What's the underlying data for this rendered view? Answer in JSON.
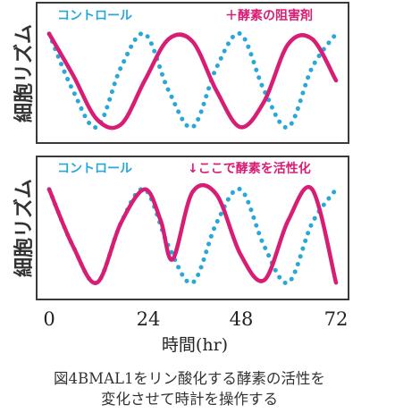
{
  "chart_data": [
    {
      "type": "line",
      "ylabel": "細胞リズム",
      "x_ticks": [
        "0",
        "24",
        "48",
        "72"
      ],
      "xlim": [
        0,
        72
      ],
      "ylim": [
        -1,
        1
      ],
      "series": [
        {
          "name": "コントロール",
          "color": "#29a8d8",
          "style": "dotted",
          "x": [
            0,
            6,
            12,
            18,
            24,
            30,
            36,
            42,
            48,
            54,
            60,
            66,
            72
          ],
          "y": [
            0.9,
            -0.2,
            -0.9,
            0.25,
            0.9,
            -0.2,
            -0.9,
            0.25,
            0.9,
            -0.2,
            -0.9,
            0.25,
            0.9
          ]
        },
        {
          "name": "＋酵素の阻害剤",
          "color": "#d81e74",
          "style": "solid",
          "x": [
            0,
            6,
            12,
            18,
            24,
            30,
            36,
            42,
            48,
            54,
            60,
            66,
            72
          ],
          "y": [
            0.9,
            0.1,
            -0.75,
            -0.85,
            0.0,
            0.8,
            0.75,
            -0.2,
            -0.9,
            -0.4,
            0.7,
            0.8,
            0.0
          ]
        }
      ]
    },
    {
      "type": "line",
      "ylabel": "細胞リズム",
      "x_ticks": [
        "0",
        "24",
        "48",
        "72"
      ],
      "xlim": [
        0,
        72
      ],
      "ylim": [
        -1,
        1
      ],
      "series": [
        {
          "name": "コントロール",
          "color": "#29a8d8",
          "style": "dotted",
          "x": [
            0,
            6,
            12,
            18,
            24,
            30,
            36,
            42,
            48,
            54,
            60,
            66,
            72
          ],
          "y": [
            0.9,
            -0.2,
            -0.9,
            0.25,
            0.9,
            -0.2,
            -0.9,
            0.25,
            0.9,
            -0.2,
            -0.9,
            0.25,
            0.9
          ]
        },
        {
          "name": "↓ここで酵素を活性化",
          "color": "#d81e74",
          "style": "solid",
          "x": [
            0,
            6,
            12,
            18,
            24,
            28,
            31,
            36,
            42,
            48,
            54,
            60,
            66,
            72
          ],
          "y": [
            0.9,
            -0.2,
            -0.9,
            0.25,
            0.9,
            0.3,
            -0.45,
            0.85,
            0.8,
            -0.35,
            -0.85,
            0.3,
            0.9,
            -0.9
          ]
        }
      ]
    }
  ],
  "xlabel": "時間(hr)",
  "caption": [
    "図4BMAL1をリン酸化する酵素の活性を",
    "変化させて時計を操作する"
  ]
}
